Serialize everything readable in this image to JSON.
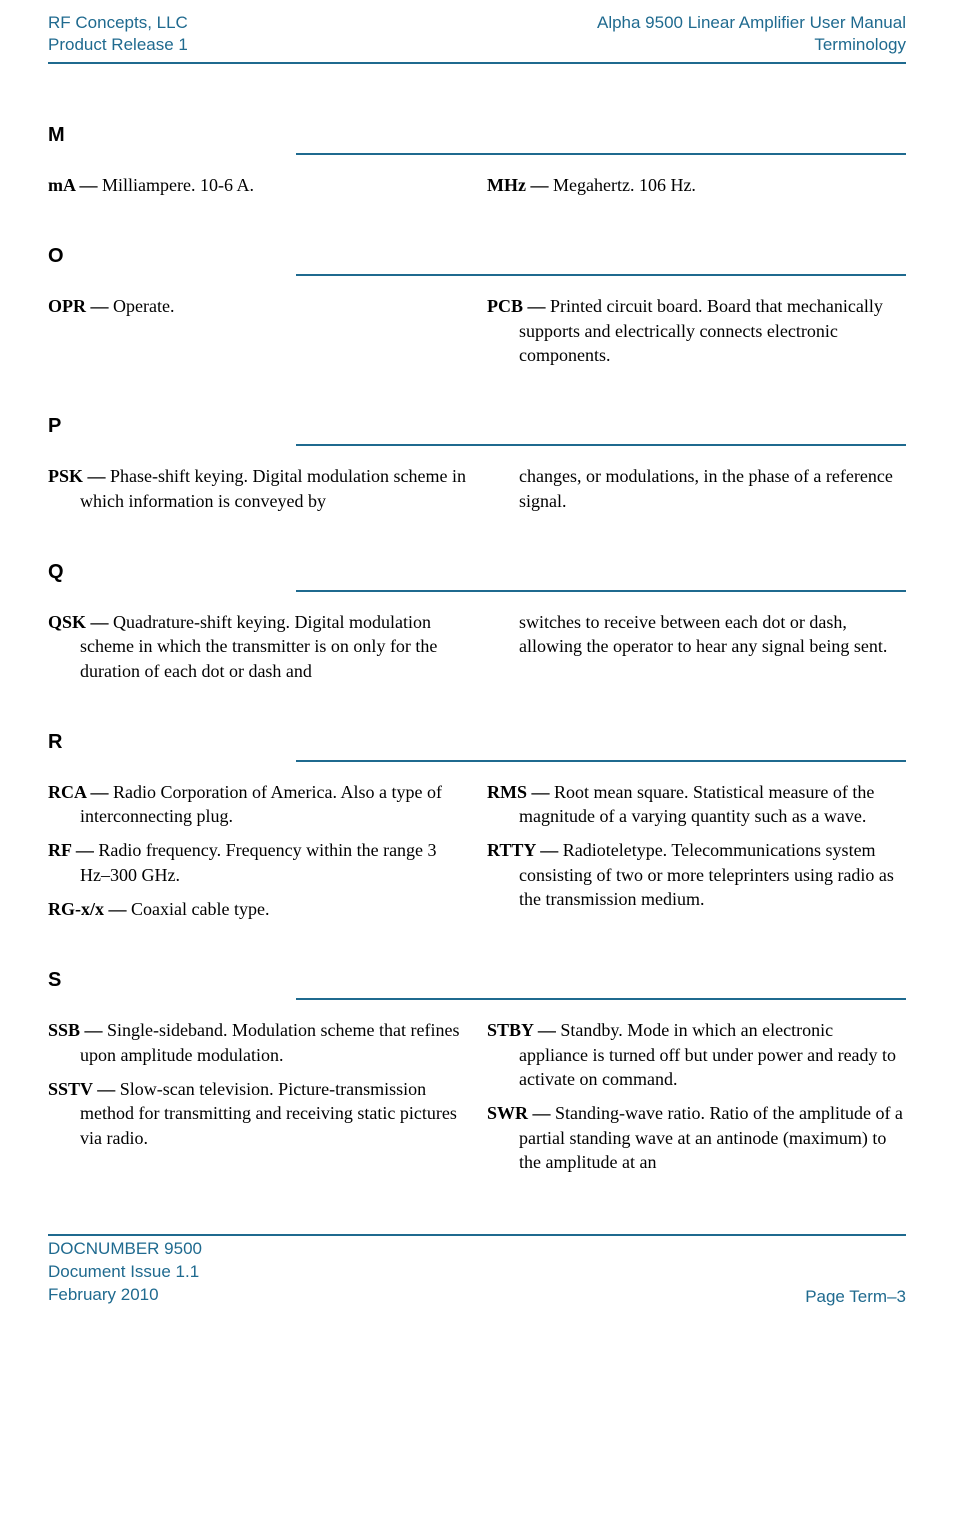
{
  "colors": {
    "accent": "#1f6a8f",
    "text": "#000000",
    "background": "#ffffff"
  },
  "typography": {
    "header_font": "Arial",
    "body_font": "Times New Roman",
    "header_size_pt": 12,
    "section_letter_size_pt": 15,
    "body_size_pt": 13
  },
  "header": {
    "left_line1": "RF Concepts, LLC",
    "left_line2": "Product Release 1",
    "right_line1": "Alpha 9500 Linear Amplifier User Manual",
    "right_line2": "Terminology"
  },
  "sections": [
    {
      "letter": "M",
      "left": [
        {
          "term": "mA —",
          "def": " Milliampere. 10-6 A."
        }
      ],
      "right": [
        {
          "term": "MHz —",
          "def": " Megahertz. 106 Hz."
        }
      ]
    },
    {
      "letter": "O",
      "left": [
        {
          "term": "OPR —",
          "def": " Operate."
        }
      ],
      "right": [
        {
          "term": "PCB —",
          "def": " Printed circuit board. Board that mechanically supports and electrically connects electronic components."
        }
      ]
    },
    {
      "letter": "P",
      "left": [
        {
          "term": "PSK —",
          "def": " Phase-shift keying. Digital modulation scheme in which information is conveyed by"
        }
      ],
      "right": [
        {
          "cont": "changes, or modulations, in the phase of a reference signal."
        }
      ]
    },
    {
      "letter": "Q",
      "left": [
        {
          "term": "QSK —",
          "def": " Quadrature-shift keying. Digital modulation scheme in which the transmitter is on only for the duration of each dot or dash and"
        }
      ],
      "right": [
        {
          "cont": "switches to receive between each dot or dash, allowing the operator to hear any signal being sent."
        }
      ]
    },
    {
      "letter": "R",
      "left": [
        {
          "term": "RCA —",
          "def": " Radio Corporation of America. Also a type of interconnecting plug."
        },
        {
          "term": "RF —",
          "def": " Radio frequency. Frequency within the range 3 Hz–300 GHz."
        },
        {
          "term": "RG-x/x —",
          "def": " Coaxial cable type."
        }
      ],
      "right": [
        {
          "term": "RMS —",
          "def": " Root mean square. Statistical measure of the magnitude of a varying quantity such as a wave."
        },
        {
          "term": "RTTY —",
          "def": " Radioteletype. Telecommunications system consisting of two or more teleprinters using radio as the transmission medium."
        }
      ]
    },
    {
      "letter": "S",
      "left": [
        {
          "term": "SSB —",
          "def": " Single-sideband. Modulation scheme that refines upon amplitude modulation."
        },
        {
          "term": "SSTV —",
          "def": " Slow-scan television. Picture-transmission method for transmitting and receiving static pictures via radio."
        }
      ],
      "right": [
        {
          "term": "STBY —",
          "def": " Standby. Mode in which an electronic appliance is turned off but under power and ready to activate on command."
        },
        {
          "term": "SWR —",
          "def": " Standing-wave ratio. Ratio of the amplitude of a partial standing wave at an antinode (maximum) to the amplitude at an"
        }
      ]
    }
  ],
  "footer": {
    "left_line1": "DOCNUMBER 9500",
    "left_line2": "Document Issue 1.1",
    "left_line3": "February 2010",
    "right": "Page Term–3"
  }
}
